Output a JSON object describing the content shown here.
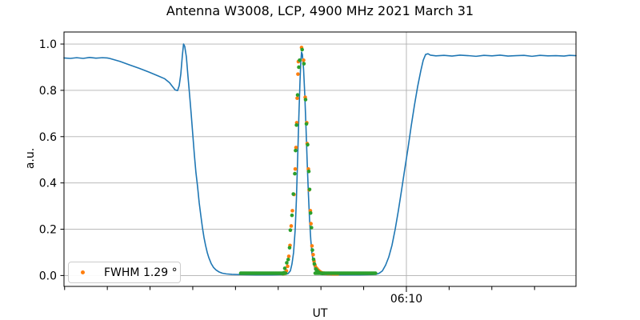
{
  "chart_data": {
    "type": "line",
    "title": "Antenna W3008, LCP, 4900 MHz 2021 March 31",
    "xlabel": "UT",
    "ylabel": "a.u.",
    "x_axis": {
      "unit": "minutes relative to 06:10 UT",
      "range": [
        -40.07,
        19.85
      ],
      "major_ticks": [
        {
          "t": 0,
          "label": "06:10"
        }
      ],
      "minor_ticks_t": [
        -40,
        -35,
        -30,
        -25,
        -20,
        -15,
        -10,
        -5,
        5,
        10,
        15
      ]
    },
    "y_axis": {
      "range": [
        -0.047,
        1.052
      ],
      "ticks": [
        {
          "v": 0.0,
          "label": "0.0"
        },
        {
          "v": 0.2,
          "label": "0.2"
        },
        {
          "v": 0.4,
          "label": "0.4"
        },
        {
          "v": 0.6,
          "label": "0.6"
        },
        {
          "v": 0.8,
          "label": "0.8"
        },
        {
          "v": 1.0,
          "label": "1.0"
        }
      ]
    },
    "grid": {
      "color": "#b0b0b0",
      "horizontal_at_y_ticks": true,
      "vertical_at_x_major": true
    },
    "colors": {
      "line": "#1f77b4",
      "scatter_data": "#ff7f0e",
      "scatter_fit": "#2ca02c",
      "spine": "#000000",
      "background": "#ffffff"
    },
    "legend": {
      "location": "lower left",
      "label": "FWHM 1.29 °"
    },
    "series": [
      {
        "name": "drift-scan-line",
        "type": "line",
        "color_key": "line",
        "line_width": 1.6,
        "points": [
          [
            -40.07,
            0.94
          ],
          [
            -39.33,
            0.938
          ],
          [
            -38.58,
            0.941
          ],
          [
            -37.83,
            0.938
          ],
          [
            -37.08,
            0.942
          ],
          [
            -36.33,
            0.939
          ],
          [
            -35.58,
            0.941
          ],
          [
            -35.02,
            0.94
          ],
          [
            -34.74,
            0.938
          ],
          [
            -33.52,
            0.925
          ],
          [
            -32.4,
            0.91
          ],
          [
            -31.27,
            0.895
          ],
          [
            -30.15,
            0.879
          ],
          [
            -29.03,
            0.862
          ],
          [
            -28.28,
            0.85
          ],
          [
            -27.72,
            0.833
          ],
          [
            -27.34,
            0.815
          ],
          [
            -27.06,
            0.802
          ],
          [
            -26.78,
            0.799
          ],
          [
            -26.59,
            0.82
          ],
          [
            -26.4,
            0.87
          ],
          [
            -26.22,
            0.95
          ],
          [
            -26.08,
            1.0
          ],
          [
            -25.94,
            0.99
          ],
          [
            -25.75,
            0.945
          ],
          [
            -25.56,
            0.86
          ],
          [
            -25.37,
            0.78
          ],
          [
            -25.19,
            0.7
          ],
          [
            -25.0,
            0.61
          ],
          [
            -24.81,
            0.52
          ],
          [
            -24.63,
            0.445
          ],
          [
            -24.44,
            0.385
          ],
          [
            -24.25,
            0.315
          ],
          [
            -24.06,
            0.26
          ],
          [
            -23.88,
            0.21
          ],
          [
            -23.69,
            0.165
          ],
          [
            -23.5,
            0.13
          ],
          [
            -23.31,
            0.1
          ],
          [
            -23.13,
            0.078
          ],
          [
            -22.85,
            0.052
          ],
          [
            -22.57,
            0.035
          ],
          [
            -22.28,
            0.024
          ],
          [
            -21.91,
            0.015
          ],
          [
            -21.54,
            0.01
          ],
          [
            -21.07,
            0.007
          ],
          [
            -20.41,
            0.005
          ],
          [
            -19.48,
            0.004
          ],
          [
            -17.6,
            0.003
          ],
          [
            -15.73,
            0.003
          ],
          [
            -14.33,
            0.004
          ],
          [
            -13.86,
            0.008
          ],
          [
            -13.58,
            0.02
          ],
          [
            -13.39,
            0.05
          ],
          [
            -13.2,
            0.1
          ],
          [
            -13.01,
            0.2
          ],
          [
            -12.87,
            0.33
          ],
          [
            -12.73,
            0.5
          ],
          [
            -12.59,
            0.68
          ],
          [
            -12.45,
            0.84
          ],
          [
            -12.36,
            0.92
          ],
          [
            -12.27,
            0.965
          ],
          [
            -12.17,
            0.955
          ],
          [
            -12.03,
            0.89
          ],
          [
            -11.89,
            0.78
          ],
          [
            -11.75,
            0.64
          ],
          [
            -11.61,
            0.49
          ],
          [
            -11.47,
            0.355
          ],
          [
            -11.33,
            0.24
          ],
          [
            -11.19,
            0.155
          ],
          [
            -11.05,
            0.095
          ],
          [
            -10.86,
            0.05
          ],
          [
            -10.67,
            0.025
          ],
          [
            -10.49,
            0.013
          ],
          [
            -10.21,
            0.007
          ],
          [
            -9.83,
            0.004
          ],
          [
            -8.71,
            0.003
          ],
          [
            -7.3,
            0.003
          ],
          [
            -5.43,
            0.003
          ],
          [
            -4.03,
            0.004
          ],
          [
            -3.56,
            0.005
          ],
          [
            -3.18,
            0.01
          ],
          [
            -2.81,
            0.02
          ],
          [
            -2.43,
            0.045
          ],
          [
            -2.06,
            0.08
          ],
          [
            -1.69,
            0.13
          ],
          [
            -1.31,
            0.2
          ],
          [
            -0.94,
            0.28
          ],
          [
            -0.56,
            0.37
          ],
          [
            -0.19,
            0.46
          ],
          [
            0.19,
            0.55
          ],
          [
            0.56,
            0.645
          ],
          [
            0.94,
            0.735
          ],
          [
            1.31,
            0.815
          ],
          [
            1.69,
            0.885
          ],
          [
            1.97,
            0.93
          ],
          [
            2.25,
            0.955
          ],
          [
            2.53,
            0.958
          ],
          [
            2.81,
            0.952
          ],
          [
            3.46,
            0.949
          ],
          [
            4.4,
            0.951
          ],
          [
            5.34,
            0.948
          ],
          [
            6.27,
            0.952
          ],
          [
            7.21,
            0.95
          ],
          [
            8.15,
            0.947
          ],
          [
            9.08,
            0.951
          ],
          [
            10.02,
            0.949
          ],
          [
            10.96,
            0.952
          ],
          [
            11.89,
            0.948
          ],
          [
            12.83,
            0.95
          ],
          [
            13.76,
            0.951
          ],
          [
            14.7,
            0.947
          ],
          [
            15.64,
            0.951
          ],
          [
            16.57,
            0.949
          ],
          [
            17.51,
            0.95
          ],
          [
            18.45,
            0.948
          ],
          [
            19.1,
            0.951
          ],
          [
            19.85,
            0.95
          ]
        ]
      },
      {
        "name": "source-peak-data-points",
        "type": "scatter",
        "color_key": "scatter_data",
        "radius": 2.3,
        "legend_label": "FWHM 1.29 °",
        "points": [
          [
            -14.33,
            0.008
          ],
          [
            -14.18,
            0.012
          ],
          [
            -14.04,
            0.02
          ],
          [
            -13.9,
            0.04
          ],
          [
            -13.76,
            0.083
          ],
          [
            -13.62,
            0.13
          ],
          [
            -13.48,
            0.214
          ],
          [
            -13.34,
            0.28
          ],
          [
            -13.15,
            0.35
          ],
          [
            -13.01,
            0.46
          ],
          [
            -12.92,
            0.553
          ],
          [
            -12.83,
            0.66
          ],
          [
            -12.78,
            0.766
          ],
          [
            -12.69,
            0.87
          ],
          [
            -12.64,
            0.924
          ],
          [
            -12.27,
            0.985
          ],
          [
            -12.03,
            0.93
          ],
          [
            -11.84,
            0.77
          ],
          [
            -11.66,
            0.66
          ],
          [
            -11.61,
            0.57
          ],
          [
            -11.47,
            0.46
          ],
          [
            -11.38,
            0.37
          ],
          [
            -11.24,
            0.28
          ],
          [
            -11.17,
            0.224
          ],
          [
            -11.05,
            0.128
          ],
          [
            -10.91,
            0.09
          ],
          [
            -10.81,
            0.062
          ],
          [
            -10.7,
            0.045
          ],
          [
            -10.58,
            0.034
          ],
          [
            -10.44,
            0.028
          ],
          [
            -10.3,
            0.022
          ],
          [
            -10.16,
            0.018
          ],
          [
            -10.02,
            0.014
          ],
          [
            -9.83,
            0.011
          ],
          [
            -9.64,
            0.01
          ],
          [
            -9.46,
            0.009
          ],
          [
            -9.18,
            0.008
          ],
          [
            -8.9,
            0.008
          ],
          [
            -8.61,
            0.007
          ],
          [
            -8.33,
            0.007
          ],
          [
            -8.05,
            0.007
          ]
        ]
      },
      {
        "name": "gaussian-fit-samples",
        "type": "scatter",
        "color_key": "scatter_fit",
        "radius": 2.3,
        "points": [
          [
            -14.47,
            0.008
          ],
          [
            -14.33,
            0.012
          ],
          [
            -14.23,
            0.031
          ],
          [
            -14.0,
            0.055
          ],
          [
            -13.83,
            0.069
          ],
          [
            -13.67,
            0.12
          ],
          [
            -13.58,
            0.196
          ],
          [
            -13.39,
            0.26
          ],
          [
            -13.23,
            0.352
          ],
          [
            -13.06,
            0.44
          ],
          [
            -12.97,
            0.54
          ],
          [
            -12.86,
            0.65
          ],
          [
            -12.73,
            0.78
          ],
          [
            -12.59,
            0.9
          ],
          [
            -12.5,
            0.93
          ],
          [
            -12.2,
            0.976
          ],
          [
            -11.99,
            0.915
          ],
          [
            -11.8,
            0.76
          ],
          [
            -11.7,
            0.655
          ],
          [
            -11.56,
            0.565
          ],
          [
            -11.42,
            0.45
          ],
          [
            -11.33,
            0.372
          ],
          [
            -11.21,
            0.27
          ],
          [
            -11.11,
            0.207
          ],
          [
            -11.0,
            0.11
          ],
          [
            -10.86,
            0.07
          ],
          [
            -10.77,
            0.05
          ],
          [
            -10.61,
            0.028
          ],
          [
            -10.49,
            0.022
          ],
          [
            -10.35,
            0.017
          ],
          [
            -10.21,
            0.013
          ],
          [
            -10.02,
            0.01
          ],
          [
            -9.83,
            0.009
          ]
        ],
        "baseline_runs": [
          {
            "t0": -19.38,
            "t1": -14.04,
            "v": 0.01,
            "step": 0.15
          },
          {
            "t0": -10.67,
            "t1": -3.56,
            "v": 0.01,
            "step": 0.15
          }
        ]
      }
    ]
  }
}
